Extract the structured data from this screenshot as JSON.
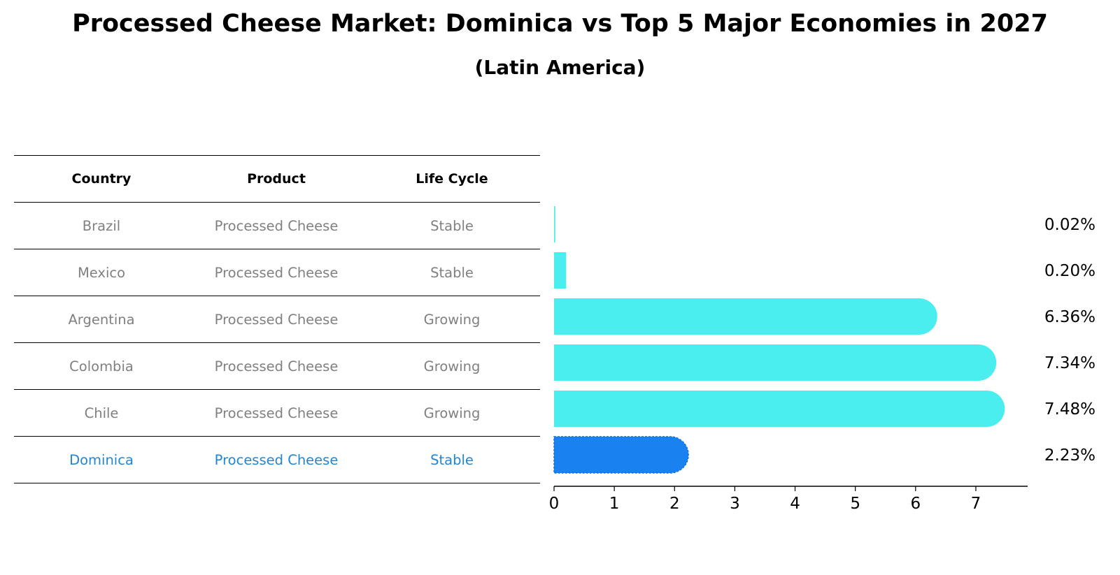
{
  "title": "Processed Cheese Market: Dominica vs Top 5 Major Economies in 2027",
  "subtitle": "(Latin America)",
  "table": {
    "headers": [
      "Country",
      "Product",
      "Life Cycle"
    ],
    "rows": [
      {
        "country": "Brazil",
        "product": "Processed Cheese",
        "life_cycle": "Stable"
      },
      {
        "country": "Mexico",
        "product": "Processed Cheese",
        "life_cycle": "Stable"
      },
      {
        "country": "Argentina",
        "product": "Processed Cheese",
        "life_cycle": "Growing"
      },
      {
        "country": "Colombia",
        "product": "Processed Cheese",
        "life_cycle": "Growing"
      },
      {
        "country": "Chile",
        "product": "Processed Cheese",
        "life_cycle": "Growing"
      },
      {
        "country": "Dominica",
        "product": "Processed Cheese",
        "life_cycle": "Stable"
      }
    ]
  },
  "chart_data": {
    "type": "bar",
    "orientation": "horizontal",
    "categories": [
      "Brazil",
      "Mexico",
      "Argentina",
      "Colombia",
      "Chile",
      "Dominica"
    ],
    "values": [
      0.02,
      0.2,
      6.36,
      7.34,
      7.48,
      2.23
    ],
    "value_labels": [
      "0.02%",
      "0.20%",
      "6.36%",
      "7.34%",
      "7.48%",
      "2.23%"
    ],
    "highlight": "Dominica",
    "xlim": [
      0,
      7.86
    ],
    "xticks": [
      0,
      1,
      2,
      3,
      4,
      5,
      6,
      7
    ],
    "xlabel": "",
    "ylabel": "",
    "colors": {
      "default": "#4aeeee",
      "highlight": "#1a82f0",
      "highlight_text": "#1f86d6",
      "muted_text": "#808080"
    }
  }
}
